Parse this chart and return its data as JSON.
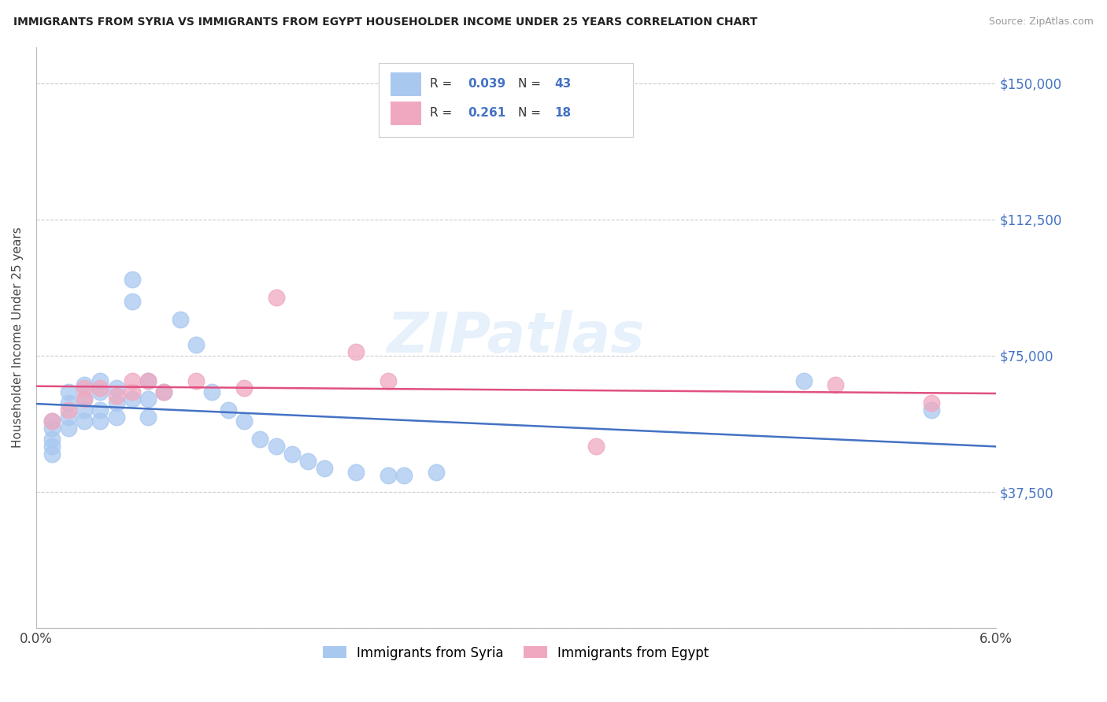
{
  "title": "IMMIGRANTS FROM SYRIA VS IMMIGRANTS FROM EGYPT HOUSEHOLDER INCOME UNDER 25 YEARS CORRELATION CHART",
  "source": "Source: ZipAtlas.com",
  "ylabel": "Householder Income Under 25 years",
  "xlim": [
    0.0,
    0.06
  ],
  "ylim": [
    0,
    160000
  ],
  "ytick_labels_right": [
    "$150,000",
    "$112,500",
    "$75,000",
    "$37,500"
  ],
  "ytick_values_right": [
    150000,
    112500,
    75000,
    37500
  ],
  "legend_label1": "Immigrants from Syria",
  "legend_label2": "Immigrants from Egypt",
  "R1": "0.039",
  "N1": "43",
  "R2": "0.261",
  "N2": "18",
  "color_syria": "#A8C8F0",
  "color_egypt": "#F0A8C0",
  "color_syria_line": "#4472C4",
  "color_egypt_line": "#E05080",
  "color_label_blue": "#4472C4",
  "watermark_text": "ZIPatlas",
  "background_color": "#FFFFFF",
  "grid_color": "#CCCCCC",
  "syria_x": [
    0.001,
    0.001,
    0.001,
    0.001,
    0.001,
    0.002,
    0.002,
    0.002,
    0.002,
    0.003,
    0.003,
    0.003,
    0.003,
    0.004,
    0.004,
    0.004,
    0.004,
    0.005,
    0.005,
    0.005,
    0.006,
    0.006,
    0.006,
    0.007,
    0.007,
    0.007,
    0.008,
    0.009,
    0.01,
    0.011,
    0.012,
    0.013,
    0.014,
    0.015,
    0.016,
    0.017,
    0.018,
    0.02,
    0.022,
    0.023,
    0.025,
    0.048,
    0.056
  ],
  "syria_y": [
    57000,
    55000,
    52000,
    50000,
    48000,
    65000,
    62000,
    58000,
    55000,
    67000,
    63000,
    60000,
    57000,
    68000,
    65000,
    60000,
    57000,
    66000,
    62000,
    58000,
    96000,
    90000,
    63000,
    68000,
    63000,
    58000,
    65000,
    85000,
    78000,
    65000,
    60000,
    57000,
    52000,
    50000,
    48000,
    46000,
    44000,
    43000,
    42000,
    42000,
    43000,
    68000,
    60000
  ],
  "egypt_x": [
    0.001,
    0.002,
    0.003,
    0.003,
    0.004,
    0.005,
    0.006,
    0.006,
    0.007,
    0.008,
    0.01,
    0.013,
    0.015,
    0.02,
    0.022,
    0.035,
    0.05,
    0.056
  ],
  "egypt_y": [
    57000,
    60000,
    66000,
    63000,
    66000,
    64000,
    68000,
    65000,
    68000,
    65000,
    68000,
    66000,
    91000,
    76000,
    68000,
    50000,
    67000,
    62000
  ]
}
